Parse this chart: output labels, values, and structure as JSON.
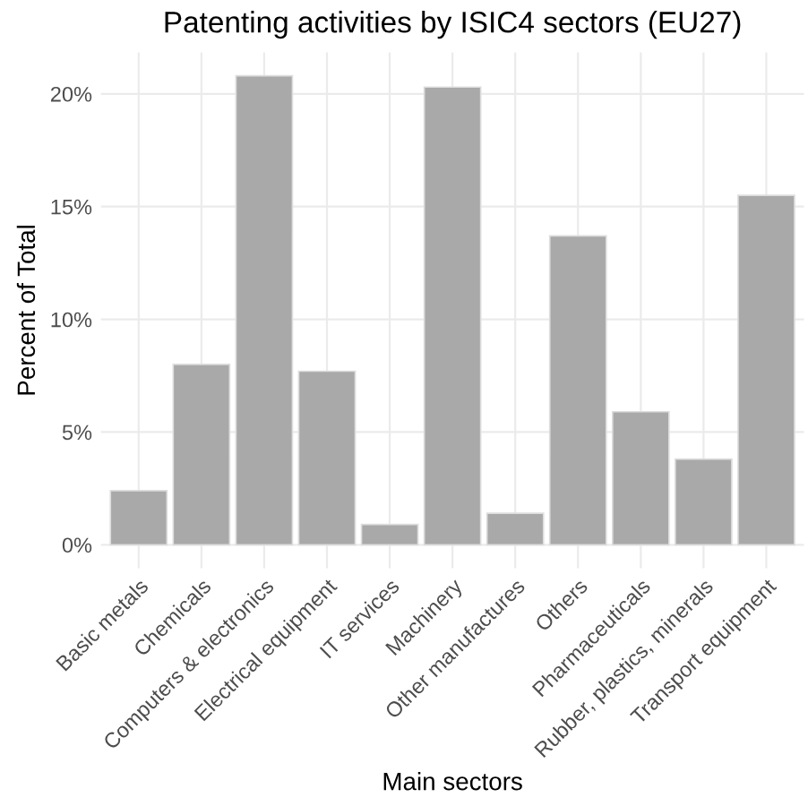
{
  "chart_data": {
    "type": "bar",
    "title": "Patenting activities by ISIC4 sectors (EU27)",
    "xlabel": "Main sectors",
    "ylabel": "Percent of Total",
    "categories": [
      "Basic metals",
      "Chemicals",
      "Computers & electronics",
      "Electrical equipment",
      "IT services",
      "Machinery",
      "Other manufactures",
      "Others",
      "Pharmaceuticals",
      "Rubber, plastics, minerals",
      "Transport equipment"
    ],
    "values": [
      2.4,
      8.0,
      20.8,
      7.7,
      0.9,
      20.3,
      1.4,
      13.7,
      5.9,
      3.8,
      15.5
    ],
    "color": "#a9a9a9",
    "ylim": [
      -1.04,
      21.84
    ],
    "yticks": [
      {
        "value": 0,
        "label": "0%"
      },
      {
        "value": 5,
        "label": "5%"
      },
      {
        "value": 10,
        "label": "10%"
      },
      {
        "value": 15,
        "label": "15%"
      },
      {
        "value": 20,
        "label": "20%"
      }
    ],
    "grid": true
  }
}
